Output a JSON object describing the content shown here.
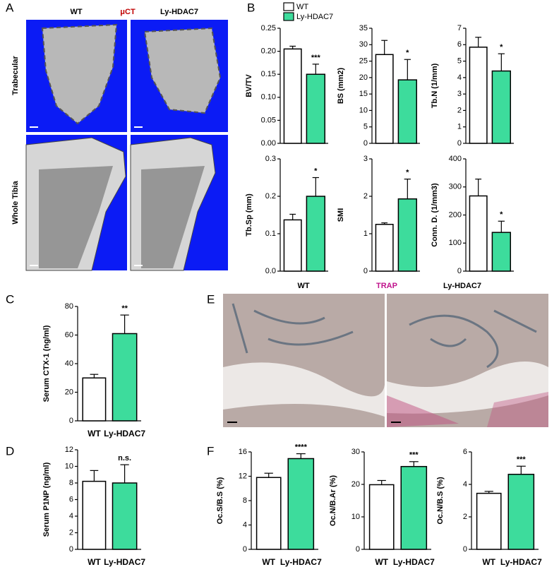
{
  "panel_labels": [
    "A",
    "B",
    "C",
    "D",
    "E",
    "F"
  ],
  "panel_a": {
    "columns": [
      "WT",
      "Ly-HDAC7"
    ],
    "title": "μCT",
    "rows": [
      "Trabecular",
      "Whole Tibia"
    ]
  },
  "panel_e": {
    "columns": [
      "WT",
      "Ly-HDAC7"
    ],
    "title": "TRAP"
  },
  "legend": [
    {
      "name": "WT",
      "color": "#ffffff"
    },
    {
      "name": "Ly-HDAC7",
      "color": "#3ddc9c"
    }
  ],
  "chart_data": [
    {
      "type": "bar",
      "ylabel": "BV/TV",
      "values": [
        0.205,
        0.15
      ],
      "errors": [
        0.006,
        0.022
      ],
      "annotation": "***",
      "colors": [
        "#ffffff",
        "#3ddc9c"
      ],
      "ylim": [
        0,
        0.25
      ],
      "yticks": [
        {
          "value": 0,
          "label": "0.00"
        },
        0.05,
        {
          "value": 0.1,
          "label": "0.10"
        },
        0.15,
        {
          "value": 0.2,
          "label": "0.20"
        },
        0.25
      ]
    },
    {
      "type": "bar",
      "ylabel": "BS (mm2)",
      "values": [
        27,
        19.3
      ],
      "errors": [
        4.3,
        6.2
      ],
      "annotation": "*",
      "colors": [
        "#ffffff",
        "#3ddc9c"
      ],
      "ylim": [
        0,
        35
      ],
      "yticks": [
        0,
        5,
        10,
        15,
        20,
        25,
        30,
        35
      ]
    },
    {
      "type": "bar",
      "ylabel": "Tb.N (1/mm)",
      "values": [
        5.85,
        4.4
      ],
      "errors": [
        0.6,
        1.05
      ],
      "annotation": "*",
      "colors": [
        "#ffffff",
        "#3ddc9c"
      ],
      "ylim": [
        0,
        7
      ],
      "yticks": [
        0,
        1,
        2,
        3,
        4,
        5,
        6,
        7
      ]
    },
    {
      "type": "bar",
      "ylabel": "Tb.Sp (mm)",
      "values": [
        0.137,
        0.2
      ],
      "errors": [
        0.015,
        0.05
      ],
      "annotation": "*",
      "colors": [
        "#ffffff",
        "#3ddc9c"
      ],
      "ylim": [
        0,
        0.3
      ],
      "yticks": [
        {
          "value": 0,
          "label": "0.0"
        },
        0.1,
        0.2,
        0.3
      ]
    },
    {
      "type": "bar",
      "ylabel": "SMI",
      "values": [
        1.25,
        1.93
      ],
      "errors": [
        0.04,
        0.53
      ],
      "annotation": "*",
      "colors": [
        "#ffffff",
        "#3ddc9c"
      ],
      "ylim": [
        0,
        3
      ],
      "yticks": [
        0,
        1,
        2,
        3
      ]
    },
    {
      "type": "bar",
      "ylabel": "Conn. D. (1/mm3)",
      "values": [
        268,
        138
      ],
      "errors": [
        60,
        40
      ],
      "annotation": "*",
      "colors": [
        "#ffffff",
        "#3ddc9c"
      ],
      "ylim": [
        0,
        400
      ],
      "yticks": [
        0,
        100,
        200,
        300,
        400
      ]
    },
    {
      "type": "bar",
      "ylabel": "Serum CTX-1 (ng/ml)",
      "categories": [
        "WT",
        "Ly-HDAC7"
      ],
      "values": [
        30,
        61
      ],
      "errors": [
        2.5,
        13
      ],
      "annotation": "**",
      "colors": [
        "#ffffff",
        "#3ddc9c"
      ],
      "ylim": [
        0,
        80
      ],
      "yticks": [
        0,
        20,
        40,
        60,
        80
      ]
    },
    {
      "type": "bar",
      "ylabel": "Serum P1NP (ng/ml)",
      "categories": [
        "WT",
        "Ly-HDAC7"
      ],
      "values": [
        8.2,
        8.0
      ],
      "errors": [
        1.3,
        2.2
      ],
      "annotation": "n.s.",
      "colors": [
        "#ffffff",
        "#3ddc9c"
      ],
      "ylim": [
        0,
        12
      ],
      "yticks": [
        0,
        2,
        4,
        6,
        8,
        10,
        12
      ]
    },
    {
      "type": "bar",
      "ylabel": "Oc.S/B.S (%)",
      "categories": [
        "WT",
        "Ly-HDAC7"
      ],
      "values": [
        11.8,
        14.9
      ],
      "errors": [
        0.7,
        0.8
      ],
      "annotation": "****",
      "colors": [
        "#ffffff",
        "#3ddc9c"
      ],
      "ylim": [
        0,
        16
      ],
      "yticks": [
        0,
        4,
        8,
        12,
        16
      ]
    },
    {
      "type": "bar",
      "ylabel": "Oc.N/B.Ar (%)",
      "categories": [
        "WT",
        "Ly-HDAC7"
      ],
      "values": [
        19.9,
        25.5
      ],
      "errors": [
        1.3,
        1.5
      ],
      "annotation": "***",
      "colors": [
        "#ffffff",
        "#3ddc9c"
      ],
      "ylim": [
        0,
        30
      ],
      "yticks": [
        0,
        10,
        20,
        30
      ]
    },
    {
      "type": "bar",
      "ylabel": "Oc.N/B.S (%)",
      "categories": [
        "WT",
        "Ly-HDAC7"
      ],
      "values": [
        3.45,
        4.62
      ],
      "errors": [
        0.12,
        0.5
      ],
      "annotation": "***",
      "colors": [
        "#ffffff",
        "#3ddc9c"
      ],
      "ylim": [
        0,
        6
      ],
      "yticks": [
        0,
        2,
        4,
        6
      ]
    }
  ]
}
